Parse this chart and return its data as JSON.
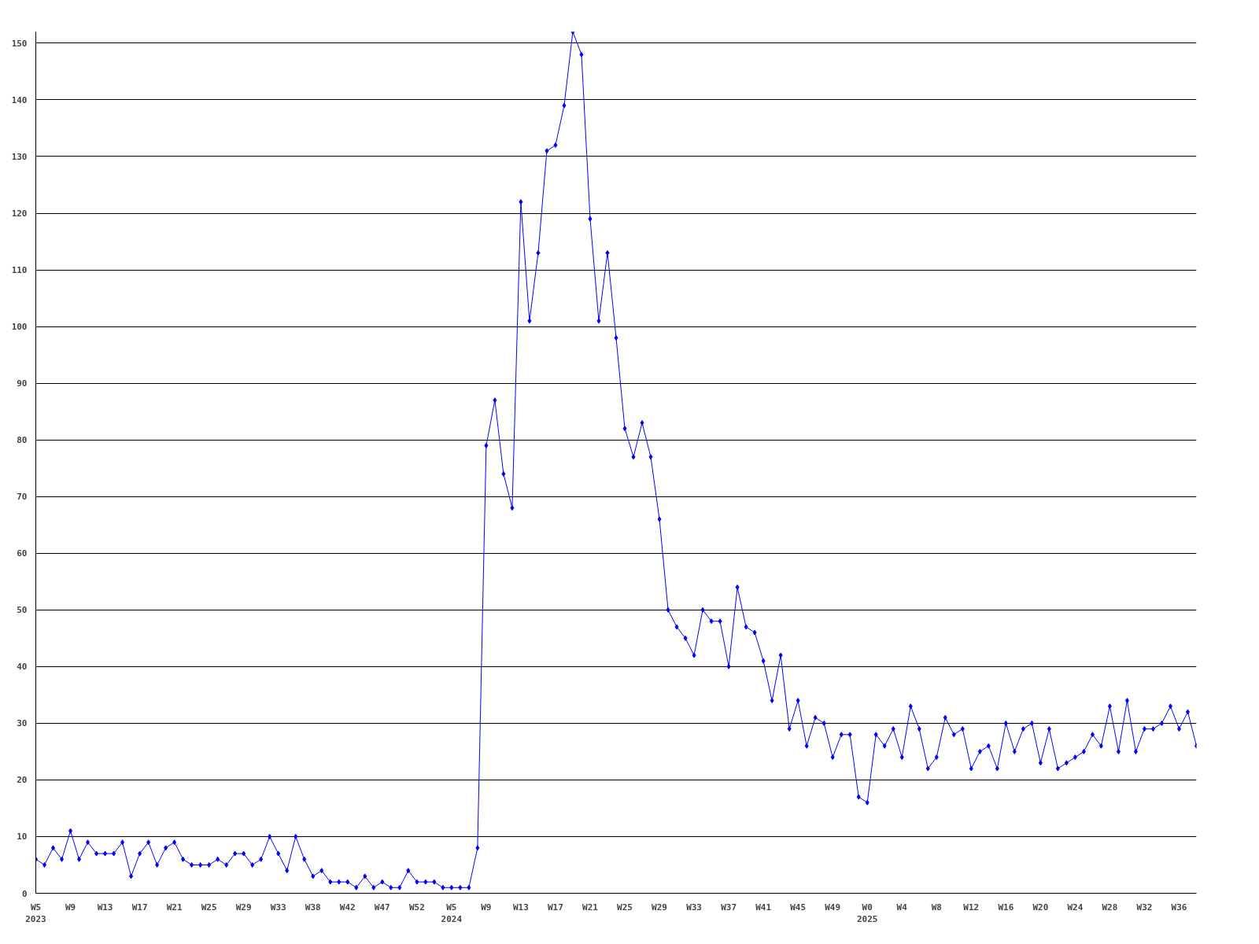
{
  "chart_data": {
    "type": "line",
    "marker": "diamond",
    "grid": "y",
    "categories": [
      "W5\n2023",
      null,
      null,
      null,
      "W9",
      null,
      null,
      null,
      "W13",
      null,
      null,
      null,
      "W17",
      null,
      null,
      null,
      "W21",
      null,
      null,
      null,
      "W25",
      null,
      null,
      null,
      "W29",
      null,
      null,
      null,
      "W33",
      null,
      null,
      null,
      "W38",
      null,
      null,
      null,
      "W42",
      null,
      null,
      null,
      "W47",
      null,
      null,
      null,
      "W52",
      null,
      null,
      null,
      "W5\n2024",
      null,
      null,
      null,
      "W9",
      null,
      null,
      null,
      "W13",
      null,
      null,
      null,
      "W17",
      null,
      null,
      null,
      "W21",
      null,
      null,
      null,
      "W25",
      null,
      null,
      null,
      "W29",
      null,
      null,
      null,
      "W33",
      null,
      null,
      null,
      "W37",
      null,
      null,
      null,
      "W41",
      null,
      null,
      null,
      "W45",
      null,
      null,
      null,
      "W49",
      null,
      null,
      null,
      "W0\n2025",
      null,
      null,
      null,
      "W4",
      null,
      null,
      null,
      "W8",
      null,
      null,
      null,
      "W12",
      null,
      null,
      null,
      "W16",
      null,
      null,
      null,
      "W20",
      null,
      null,
      null,
      "W24",
      null,
      null,
      null,
      "W28",
      null,
      null,
      null,
      "W32",
      null,
      null,
      null,
      "W36",
      null,
      null
    ],
    "series": [
      {
        "color": "#0000ff",
        "values": [
          6,
          5,
          8,
          6,
          11,
          6,
          9,
          7,
          7,
          7,
          9,
          3,
          7,
          9,
          5,
          8,
          9,
          6,
          5,
          5,
          5,
          6,
          5,
          7,
          7,
          5,
          6,
          10,
          7,
          4,
          10,
          6,
          3,
          4,
          2,
          2,
          2,
          1,
          3,
          1,
          2,
          1,
          1,
          4,
          2,
          2,
          2,
          1,
          1,
          1,
          1,
          8,
          79,
          87,
          74,
          68,
          122,
          101,
          113,
          131,
          132,
          139,
          152,
          148,
          119,
          101,
          113,
          98,
          82,
          77,
          83,
          77,
          66,
          50,
          47,
          45,
          42,
          50,
          48,
          48,
          40,
          54,
          47,
          46,
          41,
          34,
          42,
          29,
          34,
          26,
          31,
          30,
          24,
          28,
          28,
          17,
          16,
          28,
          26,
          29,
          24,
          33,
          29,
          22,
          24,
          31,
          28,
          29,
          22,
          25,
          26,
          22,
          30,
          25,
          29,
          30,
          23,
          29,
          22,
          23,
          24,
          25,
          28,
          26,
          33,
          25,
          34,
          25,
          29,
          29,
          30,
          33,
          29,
          32,
          26
        ]
      }
    ],
    "ylim": [
      0,
      152
    ],
    "yticks": [
      0,
      10,
      20,
      30,
      40,
      50,
      60,
      70,
      80,
      90,
      100,
      110,
      120,
      130,
      140,
      150
    ]
  }
}
